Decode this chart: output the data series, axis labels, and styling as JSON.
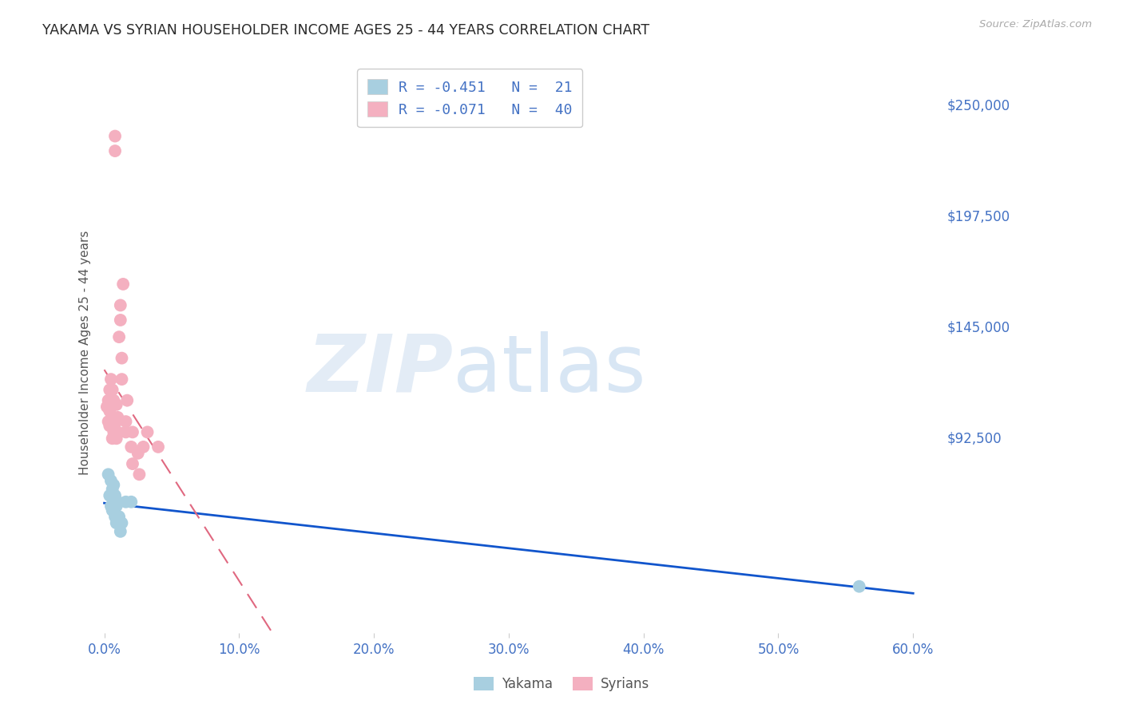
{
  "title": "YAKAMA VS SYRIAN HOUSEHOLDER INCOME AGES 25 - 44 YEARS CORRELATION CHART",
  "source": "Source: ZipAtlas.com",
  "ylabel": "Householder Income Ages 25 - 44 years",
  "watermark_zip": "ZIP",
  "watermark_atlas": "atlas",
  "xlim": [
    -0.003,
    0.62
  ],
  "ylim": [
    0,
    265000
  ],
  "yticks": [
    92500,
    145000,
    197500,
    250000
  ],
  "ytick_labels": [
    "$92,500",
    "$145,000",
    "$197,500",
    "$250,000"
  ],
  "xticks": [
    0.0,
    0.1,
    0.2,
    0.3,
    0.4,
    0.5,
    0.6
  ],
  "xtick_labels": [
    "0.0%",
    "10.0%",
    "20.0%",
    "30.0%",
    "40.0%",
    "50.0%",
    "60.0%"
  ],
  "legend1_text": "R = -0.451   N =  21",
  "legend2_text": "R = -0.071   N =  40",
  "yakama_color": "#a8cfe0",
  "syrian_color": "#f4b0c0",
  "yakama_line_color": "#1155cc",
  "syrian_line_color": "#e06880",
  "background_color": "#ffffff",
  "grid_color": "#b8b8c8",
  "title_color": "#2a2a2a",
  "tick_color": "#4472c4",
  "ylabel_color": "#555555",
  "source_color": "#aaaaaa",
  "legend_text_color": "#4472c4",
  "yakama_x": [
    0.003,
    0.004,
    0.005,
    0.005,
    0.006,
    0.006,
    0.007,
    0.007,
    0.007,
    0.008,
    0.008,
    0.009,
    0.009,
    0.01,
    0.01,
    0.011,
    0.012,
    0.013,
    0.016,
    0.02,
    0.56
  ],
  "yakama_y": [
    75000,
    65000,
    72000,
    60000,
    68000,
    58000,
    62000,
    70000,
    58000,
    65000,
    55000,
    60000,
    52000,
    62000,
    55000,
    55000,
    48000,
    52000,
    62000,
    62000,
    22000
  ],
  "syrian_x": [
    0.002,
    0.003,
    0.003,
    0.004,
    0.004,
    0.004,
    0.005,
    0.005,
    0.005,
    0.006,
    0.006,
    0.006,
    0.006,
    0.007,
    0.007,
    0.007,
    0.008,
    0.008,
    0.009,
    0.009,
    0.009,
    0.01,
    0.01,
    0.011,
    0.012,
    0.012,
    0.013,
    0.013,
    0.014,
    0.016,
    0.016,
    0.017,
    0.02,
    0.021,
    0.021,
    0.025,
    0.026,
    0.029,
    0.032,
    0.04
  ],
  "syrian_y": [
    107000,
    110000,
    100000,
    115000,
    105000,
    98000,
    120000,
    108000,
    100000,
    115000,
    108000,
    100000,
    92000,
    110000,
    100000,
    95000,
    235000,
    228000,
    108000,
    100000,
    92000,
    102000,
    95000,
    140000,
    155000,
    148000,
    130000,
    120000,
    165000,
    100000,
    95000,
    110000,
    88000,
    95000,
    80000,
    85000,
    75000,
    88000,
    95000,
    88000
  ]
}
